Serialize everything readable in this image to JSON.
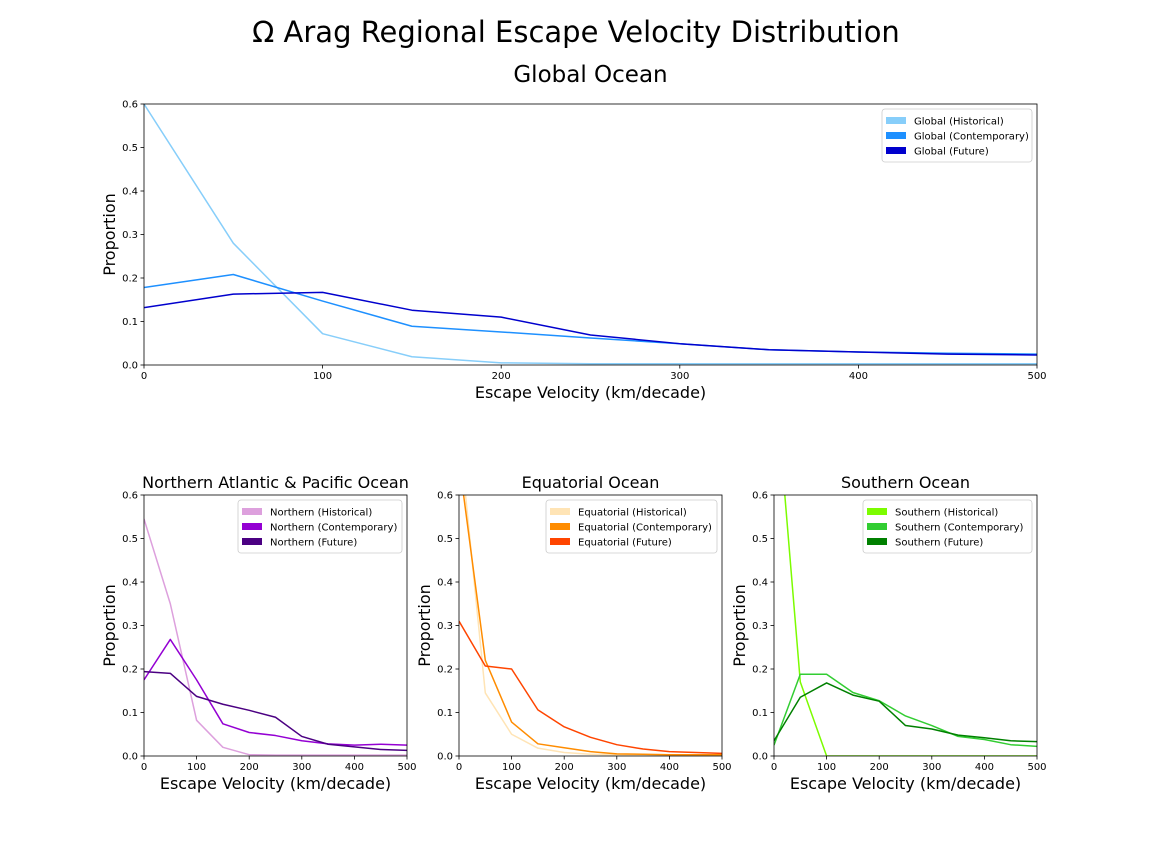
{
  "figure": {
    "title": "Ω Arag Regional Escape Velocity Distribution"
  },
  "chart_data": [
    {
      "type": "line",
      "title": "Global Ocean",
      "xlabel": "Escape Velocity (km/decade)",
      "ylabel": "Proportion",
      "xlim": [
        0,
        500
      ],
      "ylim": [
        0,
        0.6
      ],
      "xticks": [
        0,
        100,
        200,
        300,
        400,
        500
      ],
      "yticks": [
        0.0,
        0.1,
        0.2,
        0.3,
        0.4,
        0.5,
        0.6
      ],
      "legend_position": "top-right",
      "series": [
        {
          "name": "Global (Historical)",
          "color": "#87CEFA",
          "x": [
            0,
            50,
            100,
            150,
            200,
            250,
            300,
            350,
            400,
            450,
            500
          ],
          "y": [
            0.6,
            0.28,
            0.072,
            0.019,
            0.005,
            0.003,
            0.003,
            0.003,
            0.003,
            0.003,
            0.003
          ]
        },
        {
          "name": "Global (Contemporary)",
          "color": "#1E90FF",
          "x": [
            0,
            50,
            100,
            150,
            200,
            250,
            300,
            350,
            400,
            450,
            500
          ],
          "y": [
            0.178,
            0.208,
            0.147,
            0.089,
            0.076,
            0.062,
            0.049,
            0.035,
            0.03,
            0.027,
            0.025
          ]
        },
        {
          "name": "Global (Future)",
          "color": "#0000CD",
          "x": [
            0,
            50,
            100,
            150,
            200,
            250,
            300,
            350,
            400,
            450,
            500
          ],
          "y": [
            0.132,
            0.163,
            0.167,
            0.126,
            0.11,
            0.069,
            0.049,
            0.035,
            0.03,
            0.025,
            0.023
          ]
        }
      ]
    },
    {
      "type": "line",
      "title": "Northern Atlantic & Pacific Ocean",
      "xlabel": "Escape Velocity (km/decade)",
      "ylabel": "Proportion",
      "xlim": [
        0,
        500
      ],
      "ylim": [
        0,
        0.6
      ],
      "xticks": [
        0,
        100,
        200,
        300,
        400,
        500
      ],
      "yticks": [
        0.0,
        0.1,
        0.2,
        0.3,
        0.4,
        0.5,
        0.6
      ],
      "legend_position": "top-right",
      "series": [
        {
          "name": "Northern (Historical)",
          "color": "#DDA0DD",
          "x": [
            0,
            50,
            100,
            150,
            200,
            250,
            300,
            350,
            400,
            450,
            500
          ],
          "y": [
            0.545,
            0.35,
            0.082,
            0.02,
            0.003,
            0.002,
            0.002,
            0.002,
            0.002,
            0.002,
            0.002
          ]
        },
        {
          "name": "Northern (Contemporary)",
          "color": "#9400D3",
          "x": [
            0,
            50,
            100,
            150,
            200,
            250,
            300,
            350,
            400,
            450,
            500
          ],
          "y": [
            0.175,
            0.268,
            0.175,
            0.074,
            0.054,
            0.047,
            0.035,
            0.028,
            0.025,
            0.027,
            0.025
          ]
        },
        {
          "name": "Northern (Future)",
          "color": "#4B0082",
          "x": [
            0,
            50,
            100,
            150,
            200,
            250,
            300,
            350,
            400,
            450,
            500
          ],
          "y": [
            0.194,
            0.19,
            0.137,
            0.119,
            0.105,
            0.089,
            0.045,
            0.027,
            0.021,
            0.015,
            0.013
          ]
        }
      ]
    },
    {
      "type": "line",
      "title": "Equatorial Ocean",
      "xlabel": "Escape Velocity (km/decade)",
      "ylabel": "Proportion",
      "xlim": [
        0,
        500
      ],
      "ylim": [
        0,
        0.6
      ],
      "xticks": [
        0,
        100,
        200,
        300,
        400,
        500
      ],
      "yticks": [
        0.0,
        0.1,
        0.2,
        0.3,
        0.4,
        0.5,
        0.6
      ],
      "legend_position": "top-right",
      "series": [
        {
          "name": "Equatorial (Historical)",
          "color": "#FFE4B5",
          "x": [
            0,
            50,
            100,
            150,
            200,
            250,
            300,
            350,
            400,
            450,
            500
          ],
          "y": [
            0.75,
            0.145,
            0.05,
            0.018,
            0.008,
            0.004,
            0.003,
            0.002,
            0.002,
            0.002,
            0.002
          ]
        },
        {
          "name": "Equatorial (Contemporary)",
          "color": "#FF8C00",
          "x": [
            0,
            50,
            100,
            150,
            200,
            250,
            300,
            350,
            400,
            450,
            500
          ],
          "y": [
            0.68,
            0.22,
            0.078,
            0.028,
            0.019,
            0.01,
            0.005,
            0.004,
            0.003,
            0.003,
            0.003
          ]
        },
        {
          "name": "Equatorial (Future)",
          "color": "#FF4500",
          "x": [
            0,
            50,
            100,
            150,
            200,
            250,
            300,
            350,
            400,
            450,
            500
          ],
          "y": [
            0.31,
            0.207,
            0.2,
            0.106,
            0.067,
            0.043,
            0.026,
            0.016,
            0.01,
            0.008,
            0.006
          ]
        }
      ]
    },
    {
      "type": "line",
      "title": "Southern Ocean",
      "xlabel": "Escape Velocity (km/decade)",
      "ylabel": "Proportion",
      "xlim": [
        0,
        500
      ],
      "ylim": [
        0,
        0.6
      ],
      "xticks": [
        0,
        100,
        200,
        300,
        400,
        500
      ],
      "yticks": [
        0.0,
        0.1,
        0.2,
        0.3,
        0.4,
        0.5,
        0.6
      ],
      "legend_position": "top-right",
      "series": [
        {
          "name": "Southern (Historical)",
          "color": "#7CFC00",
          "x": [
            0,
            50,
            100,
            150,
            200,
            250,
            300,
            350,
            400,
            450,
            500
          ],
          "y": [
            0.9,
            0.17,
            0.0,
            0.0,
            0.0,
            0.0,
            0.0,
            0.0,
            0.0,
            0.0,
            0.0
          ]
        },
        {
          "name": "Southern (Contemporary)",
          "color": "#32CD32",
          "x": [
            0,
            50,
            100,
            150,
            200,
            250,
            300,
            350,
            400,
            450,
            500
          ],
          "y": [
            0.025,
            0.188,
            0.188,
            0.146,
            0.127,
            0.092,
            0.07,
            0.045,
            0.038,
            0.026,
            0.022
          ]
        },
        {
          "name": "Southern (Future)",
          "color": "#008000",
          "x": [
            0,
            50,
            100,
            150,
            200,
            250,
            300,
            350,
            400,
            450,
            500
          ],
          "y": [
            0.035,
            0.135,
            0.168,
            0.14,
            0.126,
            0.07,
            0.062,
            0.048,
            0.042,
            0.035,
            0.033
          ]
        }
      ]
    }
  ]
}
